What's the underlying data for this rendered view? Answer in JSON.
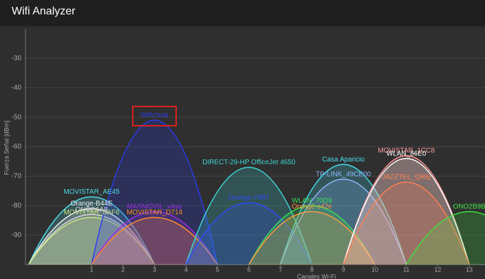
{
  "header": {
    "title": "Wifi Analyzer"
  },
  "chart_data": {
    "type": "arch",
    "y_label": "Fuerza Señal [dBm]",
    "x_label": "Canales Wi-Fi",
    "ylim": [
      -100,
      -20
    ],
    "yticks": [
      -30,
      -40,
      -50,
      -60,
      -70,
      -80,
      -90
    ],
    "xlim": [
      -1.1,
      13.5
    ],
    "xticks": [
      1,
      2,
      3,
      4,
      5,
      6,
      7,
      8,
      9,
      10,
      11,
      12,
      13
    ],
    "grid": true,
    "series": [
      {
        "name": "MOVISTAR_AE45",
        "color": "#4dd9e6",
        "x": 1,
        "value": -77
      },
      {
        "name": "Orange-B44E",
        "color": "#f0f0f0",
        "x": 1,
        "value": -81
      },
      {
        "name": "ONOE6A8",
        "color": "#d8d8d8",
        "x": 1,
        "value": -83
      },
      {
        "name": "MOVISTAR_8AF6",
        "color": "#c8e67a",
        "x": 1,
        "value": -84
      },
      {
        "name": "Wifichula",
        "color": "#2a3cf0",
        "x": 3,
        "value": -51
      },
      {
        "name": "MASMOVIL_vAvy",
        "color": "#9b30e0",
        "x": 3,
        "value": -82
      },
      {
        "name": "MOVISTAR_D714",
        "color": "#ff8c2a",
        "x": 3,
        "value": -84
      },
      {
        "name": "DIRECT-29-HP OfficeJet 4650",
        "color": "#3fd6d6",
        "x": 6,
        "value": -67
      },
      {
        "name": "Orange-79B7",
        "color": "#2f4cff",
        "x": 6,
        "value": -79
      },
      {
        "name": "Casa Aparicio",
        "color": "#45e0f0",
        "x": 9,
        "value": -66
      },
      {
        "name": "TP-LINK_49CE00",
        "color": "#8fb8ff",
        "x": 9,
        "value": -71
      },
      {
        "name": "WLAN_70D9",
        "color": "#3ee05a",
        "x": 8,
        "value": -80
      },
      {
        "name": "Orange-c42e",
        "color": "#ff9a40",
        "x": 8,
        "value": -82
      },
      {
        "name": "MOVISTAR_1CC8",
        "color": "#ff9a9a",
        "x": 11,
        "value": -63
      },
      {
        "name": "WLAN_86E0",
        "color": "#ffffff",
        "x": 11,
        "value": -64
      },
      {
        "name": "JAZZTEL_QR6j",
        "color": "#ff8050",
        "x": 11,
        "value": -72
      },
      {
        "name": "ONO2B9B",
        "color": "#40e040",
        "x": 13,
        "value": -82
      }
    ]
  }
}
